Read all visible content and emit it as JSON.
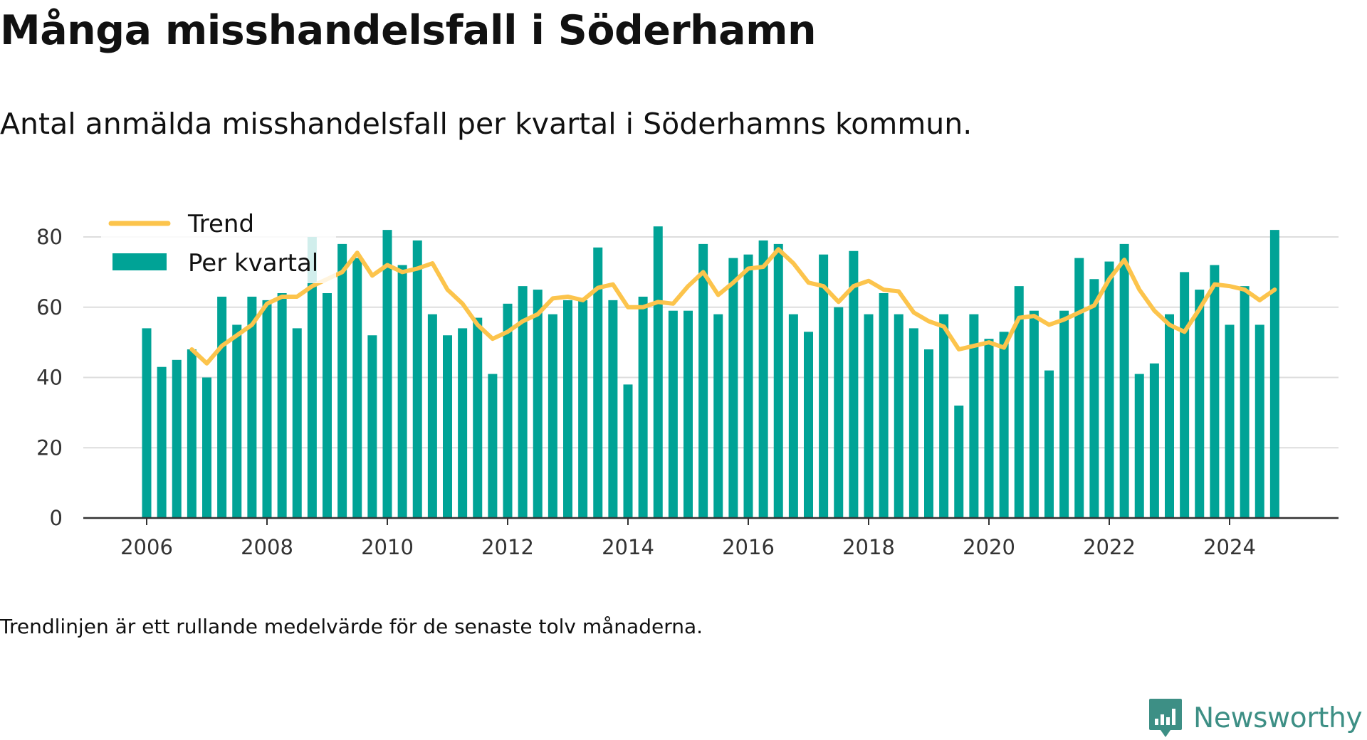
{
  "header": {
    "title": "Många misshandelsfall i Söderhamn",
    "subtitle": "Antal anmälda misshandelsfall per kvartal i Söderhamns kommun."
  },
  "footer": {
    "note": "Trendlinjen är ett rullande medelvärde för de senaste tolv månaderna.",
    "brand": "Newsworthy",
    "brand_icon": "bar-chart-badge-icon"
  },
  "colors": {
    "bar": "#00a396",
    "trend": "#fcc44c",
    "grid": "#dddddd",
    "axis": "#333333",
    "brand": "#3d8f85"
  },
  "chart_data": {
    "type": "bar",
    "title": "Många misshandelsfall i Söderhamn",
    "subtitle": "Antal anmälda misshandelsfall per kvartal i Söderhamns kommun.",
    "xlabel": "",
    "ylabel": "",
    "ylim": [
      0,
      80
    ],
    "yticks": [
      "0",
      "20",
      "40",
      "60",
      "80"
    ],
    "xticks": [
      "2006",
      "2008",
      "2010",
      "2012",
      "2014",
      "2016",
      "2018",
      "2020",
      "2022",
      "2024"
    ],
    "grid": true,
    "legend_position": "top-left",
    "x": [
      "2006 K1",
      "2006 K2",
      "2006 K3",
      "2006 K4",
      "2007 K1",
      "2007 K2",
      "2007 K3",
      "2007 K4",
      "2008 K1",
      "2008 K2",
      "2008 K3",
      "2008 K4",
      "2009 K1",
      "2009 K2",
      "2009 K3",
      "2009 K4",
      "2010 K1",
      "2010 K2",
      "2010 K3",
      "2010 K4",
      "2011 K1",
      "2011 K2",
      "2011 K3",
      "2011 K4",
      "2012 K1",
      "2012 K2",
      "2012 K3",
      "2012 K4",
      "2013 K1",
      "2013 K2",
      "2013 K3",
      "2013 K4",
      "2014 K1",
      "2014 K2",
      "2014 K3",
      "2014 K4",
      "2015 K1",
      "2015 K2",
      "2015 K3",
      "2015 K4",
      "2016 K1",
      "2016 K2",
      "2016 K3",
      "2016 K4",
      "2017 K1",
      "2017 K2",
      "2017 K3",
      "2017 K4",
      "2018 K1",
      "2018 K2",
      "2018 K3",
      "2018 K4",
      "2019 K1",
      "2019 K2",
      "2019 K3",
      "2019 K4",
      "2020 K1",
      "2020 K2",
      "2020 K3",
      "2020 K4",
      "2021 K1",
      "2021 K2",
      "2021 K3",
      "2021 K4",
      "2022 K1",
      "2022 K2",
      "2022 K3",
      "2022 K4",
      "2023 K1",
      "2023 K2",
      "2023 K3",
      "2023 K4",
      "2024 K1",
      "2024 K2",
      "2024 K3",
      "2024 K4"
    ],
    "series": [
      {
        "name": "Per kvartal",
        "type": "bar",
        "values": [
          54,
          43,
          45,
          48,
          40,
          63,
          55,
          63,
          62,
          64,
          54,
          80,
          64,
          78,
          74,
          52,
          82,
          72,
          79,
          58,
          52,
          54,
          57,
          41,
          61,
          66,
          65,
          58,
          62,
          62,
          77,
          62,
          38,
          63,
          83,
          59,
          59,
          78,
          58,
          74,
          75,
          79,
          78,
          58,
          53,
          75,
          60,
          76,
          58,
          64,
          58,
          54,
          48,
          58,
          32,
          58,
          51,
          53,
          66,
          59,
          42,
          59,
          74,
          68,
          73,
          78,
          41,
          44,
          58,
          70,
          65,
          72,
          55,
          66,
          55,
          82
        ]
      },
      {
        "name": "Trend",
        "type": "line",
        "values": [
          null,
          null,
          null,
          48,
          44,
          49,
          52,
          55,
          61,
          63,
          63,
          66,
          68,
          70,
          75.5,
          69,
          72,
          70,
          71,
          72.5,
          65,
          61,
          55,
          51,
          53,
          56,
          58,
          62.5,
          63,
          62,
          65.5,
          66.5,
          60,
          60,
          61.5,
          61,
          66,
          70,
          63.5,
          67,
          71,
          71.5,
          76.5,
          72.5,
          67,
          66,
          61.5,
          66,
          67.5,
          65,
          64.5,
          58.5,
          56,
          54.5,
          48,
          49,
          50,
          48.5,
          57,
          57.5,
          55,
          56.5,
          58.5,
          60.5,
          68,
          73.5,
          65,
          59,
          55,
          53,
          59.5,
          66.5,
          66,
          65,
          62,
          65
        ]
      }
    ]
  }
}
